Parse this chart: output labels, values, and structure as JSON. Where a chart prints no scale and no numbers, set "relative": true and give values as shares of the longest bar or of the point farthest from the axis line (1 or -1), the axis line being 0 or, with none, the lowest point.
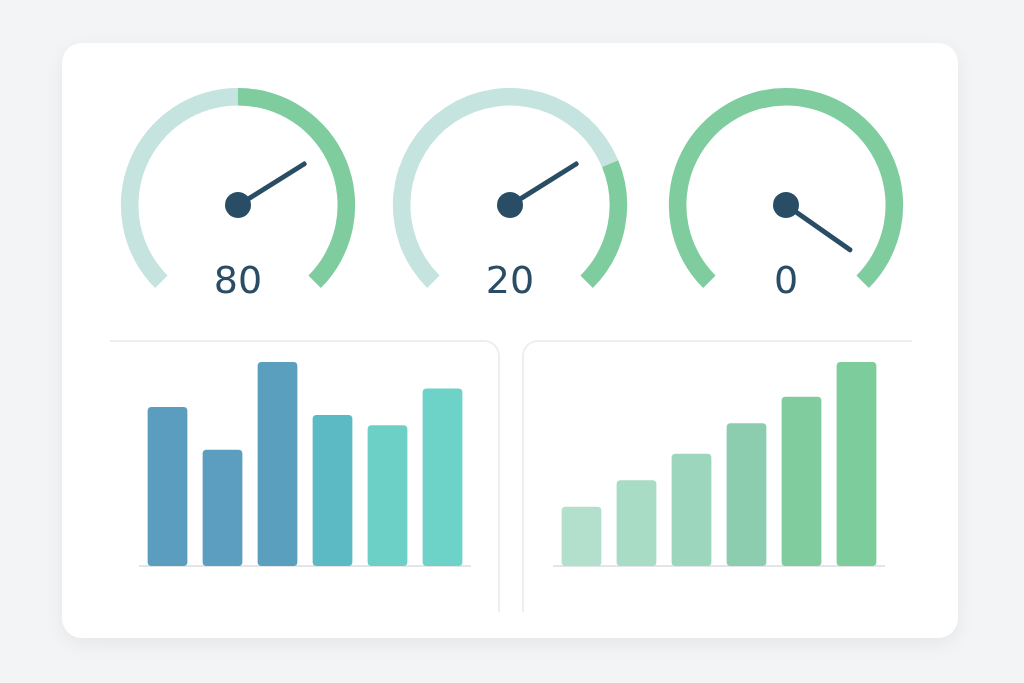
{
  "chart_data": [
    {
      "type": "donut",
      "categories": [
        null,
        null
      ],
      "values": [
        50,
        50
      ],
      "colors": [
        "#c5e3df",
        "#7fcd9e"
      ],
      "annotations": [
        "80"
      ]
    },
    {
      "type": "donut",
      "categories": [
        null,
        null
      ],
      "values": [
        75,
        25
      ],
      "colors": [
        "#c5e3df",
        "#7fcd9e"
      ],
      "annotations": [
        "20"
      ]
    },
    {
      "type": "pie",
      "categories": [
        null
      ],
      "values": [
        100
      ],
      "colors": [
        "#7fcd9e"
      ],
      "annotations": [
        "0"
      ]
    },
    {
      "type": "bar",
      "relative": true,
      "categories": [
        null,
        null,
        null,
        null,
        null,
        null
      ],
      "values": [
        0.78,
        0.57,
        1,
        0.74,
        0.69,
        0.87
      ],
      "colors": [
        "#5a9dbf",
        "#5b9ec0",
        "#5a9fbe",
        "#5bbac4",
        "#6dd0c6",
        "#6dd3c8"
      ]
    },
    {
      "type": "bar",
      "relative": true,
      "categories": [
        null,
        null,
        null,
        null,
        null,
        null
      ],
      "values": [
        0.29,
        0.42,
        0.55,
        0.7,
        0.83,
        1
      ],
      "colors": [
        "#b3e0cc",
        "#a8dcc4",
        "#9cd6bd",
        "#8ccdb0",
        "#80cc9f",
        "#7dcc9c"
      ]
    }
  ]
}
